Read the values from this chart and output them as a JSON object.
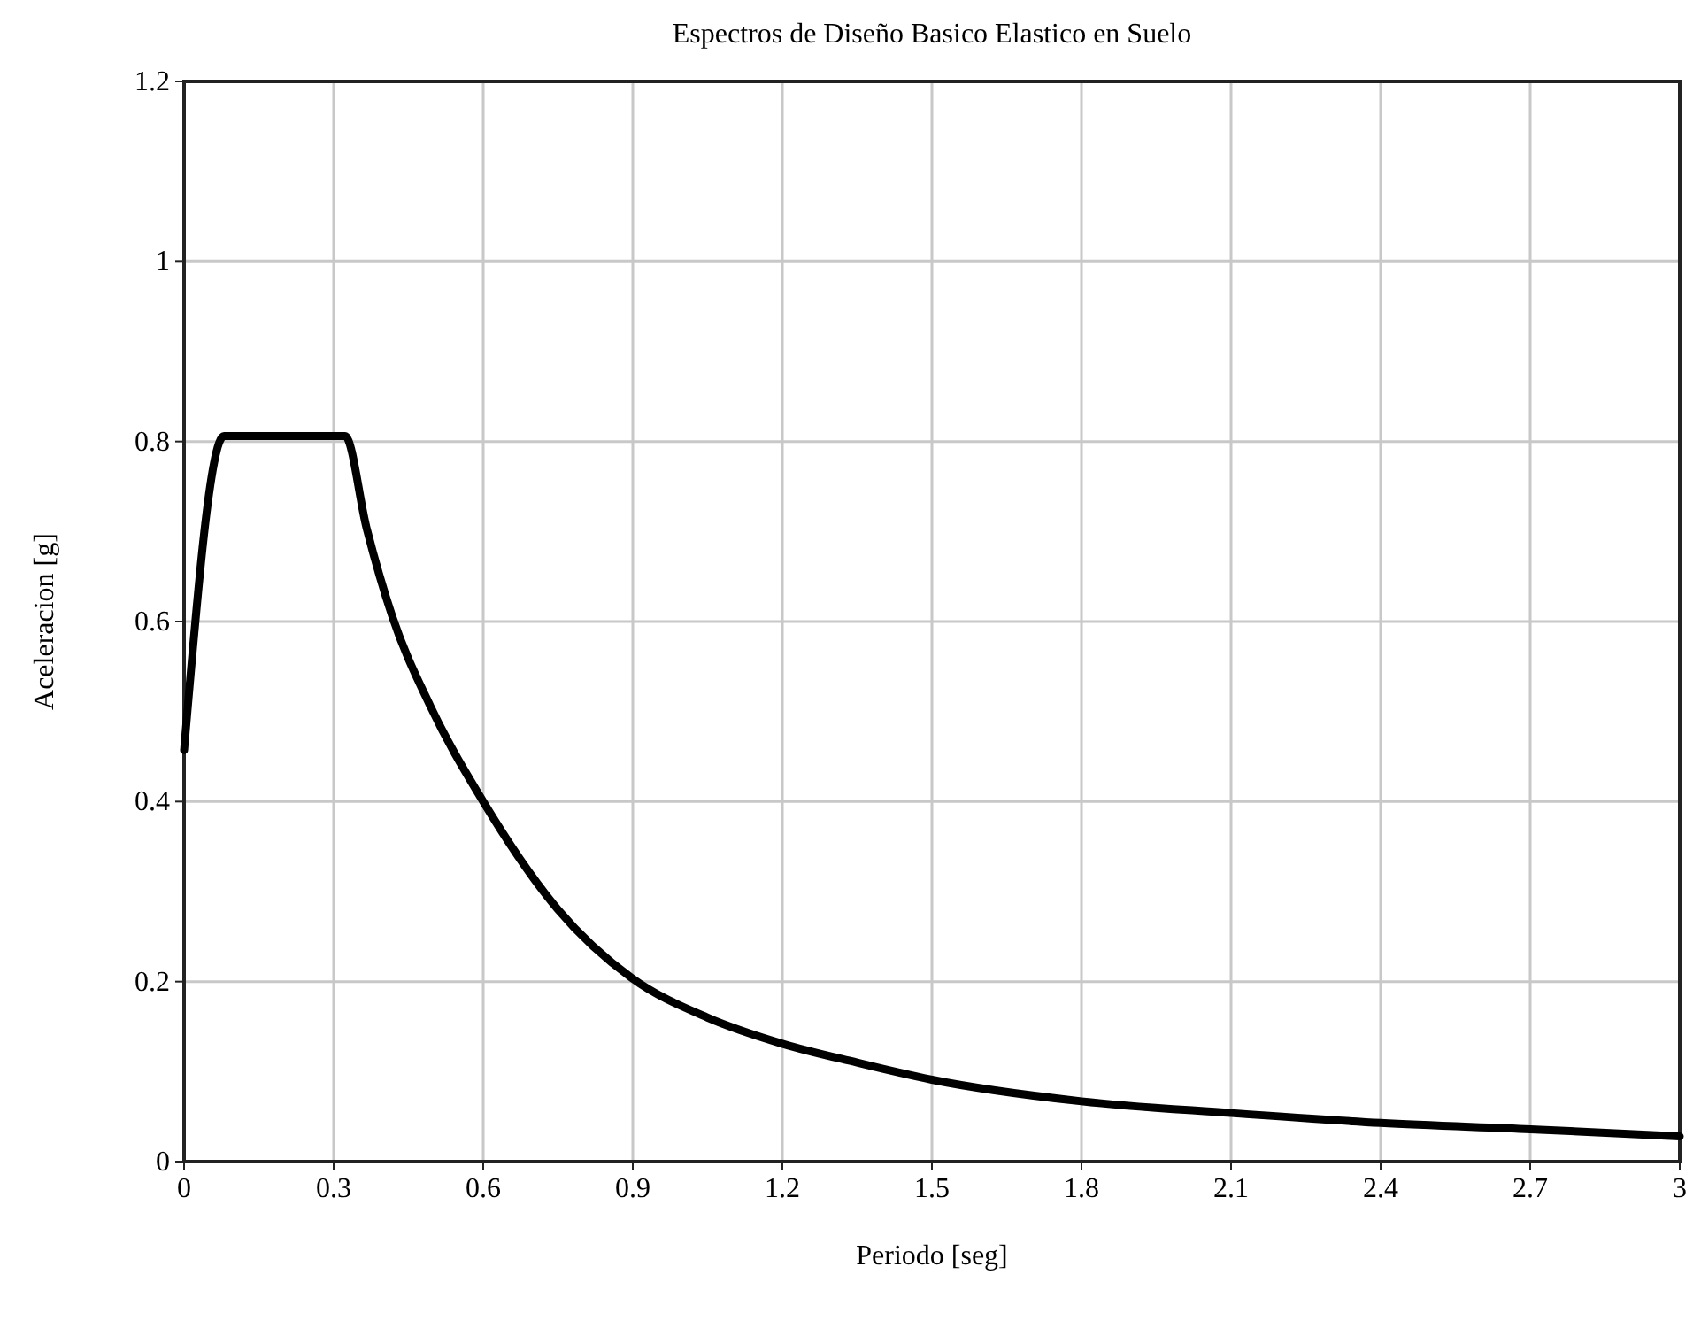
{
  "chart_data": {
    "type": "line",
    "title": "Espectros de Diseño Basico Elastico en Suelo",
    "xlabel": "Periodo [seg]",
    "ylabel": "Aceleracion [g]",
    "x": [
      0,
      0.08,
      0.323,
      0.366,
      0.418,
      0.494,
      0.6,
      0.75,
      0.898,
      1.05,
      1.2,
      1.35,
      1.5,
      1.8,
      2.1,
      2.4,
      2.7,
      3.0
    ],
    "series": [
      {
        "color": "#000000",
        "values": [
          0.457,
          0.806,
          0.806,
          0.704,
          0.605,
          0.506,
          0.4,
          0.28,
          0.204,
          0.16,
          0.131,
          0.11,
          0.091,
          0.067,
          0.054,
          0.043,
          0.036,
          0.028
        ]
      }
    ],
    "xlim": [
      0,
      3
    ],
    "xticks": [
      0,
      0.3,
      0.6,
      0.9,
      1.2,
      1.5,
      1.8,
      2.1,
      2.4,
      2.7,
      3
    ],
    "ylim": [
      0,
      1.2
    ],
    "yticks": [
      0,
      0.2,
      0.4,
      0.6,
      0.8,
      1,
      1.2
    ],
    "grid": true,
    "marker": "none",
    "line_style": "solid"
  }
}
